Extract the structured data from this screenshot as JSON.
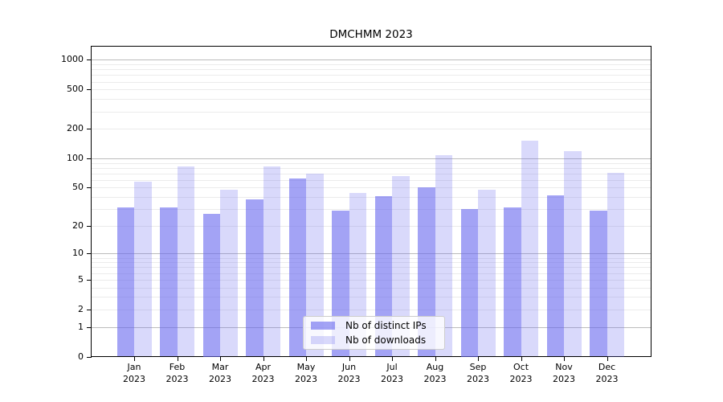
{
  "title": "DMCHMM 2023",
  "chart_data": {
    "type": "bar",
    "scale": "log1p",
    "title": "DMCHMM 2023",
    "xlabel": "",
    "ylabel": "",
    "year": "2023",
    "categories": [
      "Jan",
      "Feb",
      "Mar",
      "Apr",
      "May",
      "Jun",
      "Jul",
      "Aug",
      "Sep",
      "Oct",
      "Nov",
      "Dec"
    ],
    "series": [
      {
        "name": "Nb of distinct IPs",
        "color": "rgba(102,102,238,0.6)",
        "values": [
          31,
          31,
          27,
          38,
          62,
          29,
          41,
          50,
          30,
          31,
          42,
          29
        ]
      },
      {
        "name": "Nb of downloads",
        "color": "rgba(102,102,238,0.25)",
        "values": [
          58,
          83,
          48,
          82,
          70,
          44,
          66,
          108,
          48,
          151,
          119,
          71
        ]
      }
    ],
    "yticks": [
      0,
      1,
      2,
      5,
      10,
      20,
      50,
      100,
      200,
      500,
      1000
    ],
    "ylim": [
      0,
      1360
    ],
    "grid": true,
    "grid_major_values": [
      1,
      10,
      100,
      1000
    ],
    "legend_position": "lower center",
    "colors": {
      "bar_base": "#6666ee",
      "grid_major": "#bcbcbc",
      "grid_minor": "#ebebeb",
      "axis": "#000000",
      "background": "#ffffff"
    }
  }
}
